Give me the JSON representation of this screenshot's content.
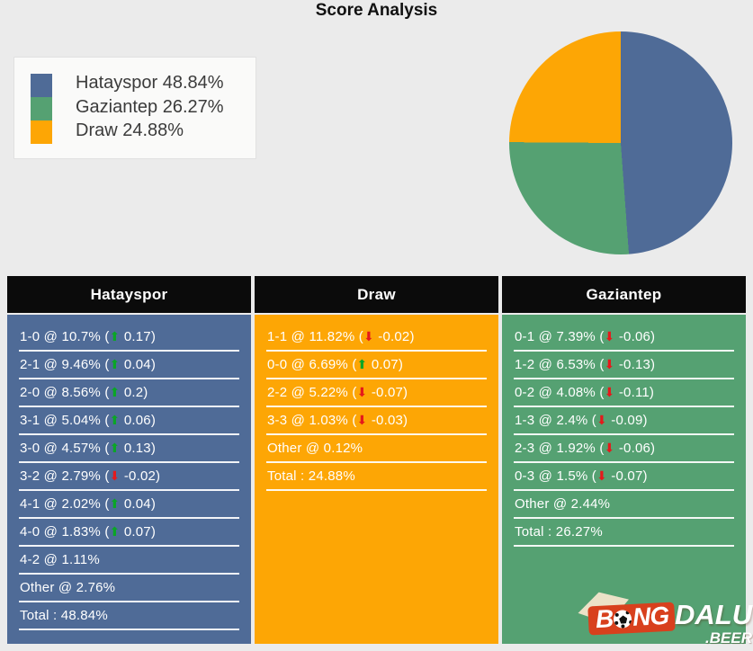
{
  "page": {
    "title": "Score Analysis",
    "background": "#ebebeb"
  },
  "colors": {
    "hatayspor": "#4f6b97",
    "gaziantep": "#55a172",
    "draw": "#fda605",
    "header_bg": "#0b0b0b",
    "trend_up": "#0aa626",
    "trend_down": "#e5191b",
    "watermark_red": "#d8401d"
  },
  "chart_data": {
    "type": "pie",
    "title": "Score Analysis",
    "labels": [
      "Hatayspor",
      "Gaziantep",
      "Draw"
    ],
    "values": [
      48.84,
      26.27,
      24.88
    ],
    "colors": [
      "#4f6b97",
      "#55a172",
      "#fda605"
    ],
    "start_angle_deg": 90,
    "direction": "clockwise",
    "legend_position": "upper-left"
  },
  "legend": {
    "items": [
      {
        "label": "Hatayspor 48.84%",
        "color": "#4f6b97"
      },
      {
        "label": "Gaziantep 26.27%",
        "color": "#55a172"
      },
      {
        "label": "Draw 24.88%",
        "color": "#fda605"
      }
    ]
  },
  "table": {
    "columns": [
      {
        "header": "Hatayspor",
        "color": "#4f6b97",
        "rows": [
          {
            "pre": "1-0 @ 10.7% (",
            "arrow": "⬆",
            "dir": "up",
            "post": " 0.17)"
          },
          {
            "pre": "2-1 @ 9.46% (",
            "arrow": "⬆",
            "dir": "up",
            "post": " 0.04)"
          },
          {
            "pre": "2-0 @ 8.56% (",
            "arrow": "⬆",
            "dir": "up",
            "post": " 0.2)"
          },
          {
            "pre": "3-1 @ 5.04% (",
            "arrow": "⬆",
            "dir": "up",
            "post": " 0.06)"
          },
          {
            "pre": "3-0 @ 4.57% (",
            "arrow": "⬆",
            "dir": "up",
            "post": " 0.13)"
          },
          {
            "pre": "3-2 @ 2.79% (",
            "arrow": "⬇",
            "dir": "down",
            "post": " -0.02)"
          },
          {
            "pre": "4-1 @ 2.02% (",
            "arrow": "⬆",
            "dir": "up",
            "post": " 0.04)"
          },
          {
            "pre": "4-0 @ 1.83% (",
            "arrow": "⬆",
            "dir": "up",
            "post": " 0.07)"
          },
          {
            "pre": "4-2 @ 1.11%",
            "arrow": "",
            "dir": "",
            "post": ""
          },
          {
            "pre": "Other @ 2.76%",
            "arrow": "",
            "dir": "",
            "post": ""
          },
          {
            "pre": "Total : 48.84%",
            "arrow": "",
            "dir": "",
            "post": ""
          }
        ]
      },
      {
        "header": "Draw",
        "color": "#fda605",
        "rows": [
          {
            "pre": "1-1 @ 11.82% (",
            "arrow": "⬇",
            "dir": "down",
            "post": " -0.02)"
          },
          {
            "pre": "0-0 @ 6.69% (",
            "arrow": "⬆",
            "dir": "up",
            "post": " 0.07)"
          },
          {
            "pre": "2-2 @ 5.22% (",
            "arrow": "⬇",
            "dir": "down",
            "post": " -0.07)"
          },
          {
            "pre": "3-3 @ 1.03% (",
            "arrow": "⬇",
            "dir": "down",
            "post": " -0.03)"
          },
          {
            "pre": "Other @ 0.12%",
            "arrow": "",
            "dir": "",
            "post": ""
          },
          {
            "pre": "Total : 24.88%",
            "arrow": "",
            "dir": "",
            "post": ""
          }
        ]
      },
      {
        "header": "Gaziantep",
        "color": "#55a172",
        "rows": [
          {
            "pre": "0-1 @ 7.39% (",
            "arrow": "⬇",
            "dir": "down",
            "post": " -0.06)"
          },
          {
            "pre": "1-2 @ 6.53% (",
            "arrow": "⬇",
            "dir": "down",
            "post": " -0.13)"
          },
          {
            "pre": "0-2 @ 4.08% (",
            "arrow": "⬇",
            "dir": "down",
            "post": " -0.11)"
          },
          {
            "pre": "1-3 @ 2.4% (",
            "arrow": "⬇",
            "dir": "down",
            "post": " -0.09)"
          },
          {
            "pre": "2-3 @ 1.92% (",
            "arrow": "⬇",
            "dir": "down",
            "post": " -0.06)"
          },
          {
            "pre": "0-3 @ 1.5% (",
            "arrow": "⬇",
            "dir": "down",
            "post": " -0.07)"
          },
          {
            "pre": "Other @ 2.44%",
            "arrow": "",
            "dir": "",
            "post": ""
          },
          {
            "pre": "Total : 26.27%",
            "arrow": "",
            "dir": "",
            "post": ""
          }
        ]
      }
    ]
  },
  "watermark": {
    "b": "B",
    "ng": "NG",
    "dalu": "DALU",
    "tld": ".BEER"
  }
}
